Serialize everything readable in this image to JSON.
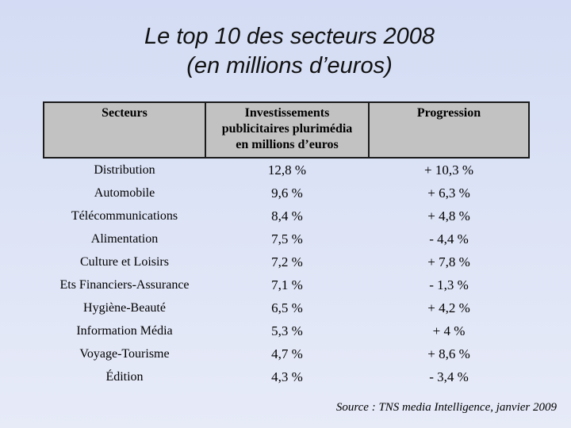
{
  "title": {
    "line1": "Le top 10 des secteurs 2008",
    "line2": "(en millions d’euros)"
  },
  "table": {
    "headers": {
      "sector": "Secteurs",
      "invest_line1": "Investissements",
      "invest_line2": "publicitaires plurimédia",
      "invest_line3": "en millions d’euros",
      "progression": "Progression"
    },
    "rows": [
      {
        "sector": "Distribution",
        "invest": "12,8 %",
        "progression": "+ 10,3 %"
      },
      {
        "sector": "Automobile",
        "invest": "9,6 %",
        "progression": "+ 6,3 %"
      },
      {
        "sector": "Télécommunications",
        "invest": "8,4 %",
        "progression": "+ 4,8 %"
      },
      {
        "sector": "Alimentation",
        "invest": "7,5 %",
        "progression": "- 4,4 %"
      },
      {
        "sector": "Culture et Loisirs",
        "invest": "7,2 %",
        "progression": "+ 7,8 %"
      },
      {
        "sector": "Ets Financiers-Assurance",
        "invest": "7,1 %",
        "progression": "- 1,3 %"
      },
      {
        "sector": "Hygiène-Beauté",
        "invest": "6,5 %",
        "progression": "+ 4,2 %"
      },
      {
        "sector": "Information Média",
        "invest": "5,3 %",
        "progression": "+ 4 %"
      },
      {
        "sector": "Voyage-Tourisme",
        "invest": "4,7 %",
        "progression": "+ 8,6 %"
      },
      {
        "sector": "Édition",
        "invest": "4,3 %",
        "progression": "- 3,4 %"
      }
    ]
  },
  "source": "Source : TNS media Intelligence, janvier 2009"
}
